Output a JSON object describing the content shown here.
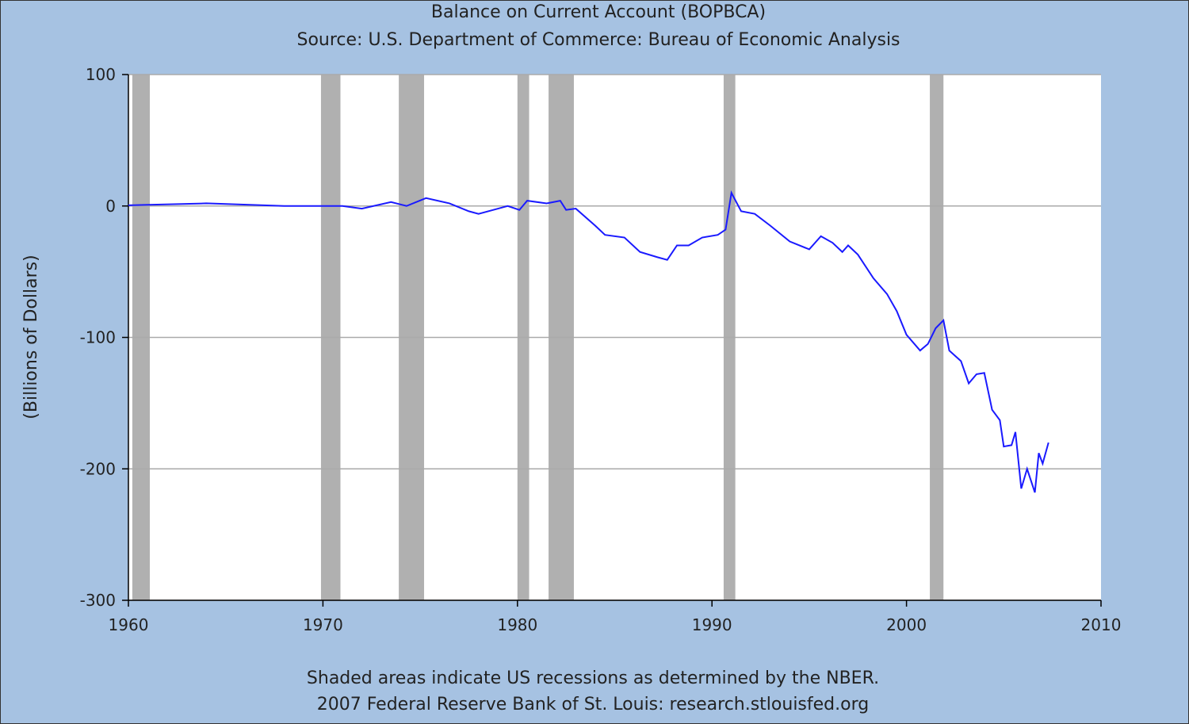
{
  "chart_data": {
    "type": "line",
    "title": "Balance on Current Account (BOPBCA)",
    "subtitle": "Source: U.S. Department of Commerce: Bureau of Economic Analysis",
    "y_label": "(Billions of Dollars)",
    "footnote": "Shaded areas indicate US recessions as determined by the NBER.",
    "credit": "2007 Federal Reserve Bank of St. Louis: research.stlouisfed.org",
    "xlim": [
      1960,
      2010
    ],
    "xticks": [
      1960,
      1970,
      1980,
      1990,
      2000,
      2010
    ],
    "ylim": [
      -300,
      100
    ],
    "yticks": [
      -300,
      -200,
      -100,
      0,
      100
    ],
    "grid": true,
    "recession_color": "#b0b0b0",
    "recessions": [
      [
        1960.2,
        1961.1
      ],
      [
        1969.9,
        1970.9
      ],
      [
        1973.9,
        1975.2
      ],
      [
        1980.0,
        1980.6
      ],
      [
        1981.6,
        1982.9
      ],
      [
        1990.6,
        1991.2
      ],
      [
        2001.2,
        2001.9
      ]
    ],
    "x": [
      1960,
      1964,
      1968,
      1971,
      1972,
      1973.5,
      1974.3,
      1975.3,
      1976.5,
      1977.5,
      1978,
      1979.5,
      1980.1,
      1980.5,
      1981.5,
      1982.2,
      1982.5,
      1983,
      1984,
      1984.5,
      1985.5,
      1986.3,
      1987.2,
      1987.7,
      1988.2,
      1988.8,
      1989.5,
      1990.3,
      1990.7,
      1991.0,
      1991.5,
      1992.2,
      1993,
      1994,
      1995,
      1995.6,
      1996.2,
      1996.7,
      1997,
      1997.5,
      1998.3,
      1999,
      1999.5,
      2000,
      2000.7,
      2001.1,
      2001.5,
      2001.9,
      2002.2,
      2002.8,
      2003.2,
      2003.6,
      2004,
      2004.4,
      2004.8,
      2005,
      2005.4,
      2005.6,
      2005.9,
      2006.2,
      2006.6,
      2006.8,
      2007,
      2007.3
    ],
    "series": [
      {
        "name": "BOPBCA",
        "color": "#1a1aff",
        "values": [
          0.5,
          2,
          0,
          0,
          -2,
          3,
          0,
          6,
          2,
          -4,
          -6,
          0,
          -3,
          4,
          2,
          4,
          -3,
          -2,
          -15,
          -22,
          -24,
          -35,
          -39,
          -41,
          -30,
          -30,
          -24,
          -22,
          -18,
          10,
          -4,
          -6,
          -15,
          -27,
          -33,
          -23,
          -28,
          -35,
          -30,
          -37,
          -55,
          -67,
          -80,
          -98,
          -110,
          -105,
          -93,
          -87,
          -110,
          -118,
          -135,
          -128,
          -127,
          -155,
          -163,
          -183,
          -182,
          -172,
          -215,
          -200,
          -218,
          -188,
          -196,
          -180
        ]
      }
    ]
  }
}
